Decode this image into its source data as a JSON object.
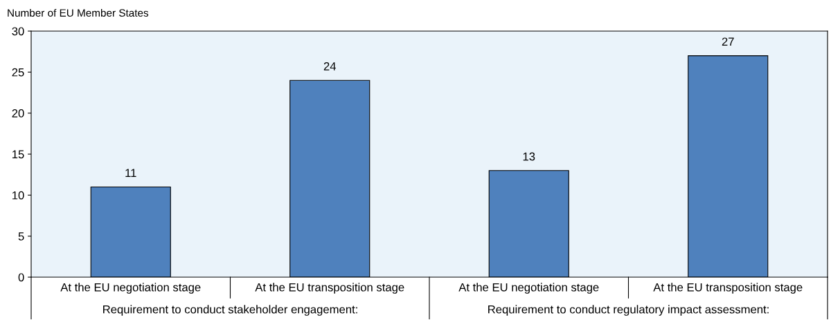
{
  "chart_data": {
    "type": "bar",
    "ylabel": "Number of EU Member States",
    "categories": [
      "At the EU negotiation stage",
      "At the EU transposition stage",
      "At the EU negotiation stage",
      "At the EU transposition stage"
    ],
    "values": [
      11,
      24,
      13,
      27
    ],
    "color": "#4f81bd",
    "ylim": [
      0,
      30
    ],
    "yticks": [
      0,
      5,
      10,
      15,
      20,
      25,
      30
    ],
    "data_labels": true,
    "grid": false,
    "annotations": [
      "Requirement to conduct stakeholder engagement:",
      "Requirement to conduct regulatory impact assessment:"
    ]
  }
}
